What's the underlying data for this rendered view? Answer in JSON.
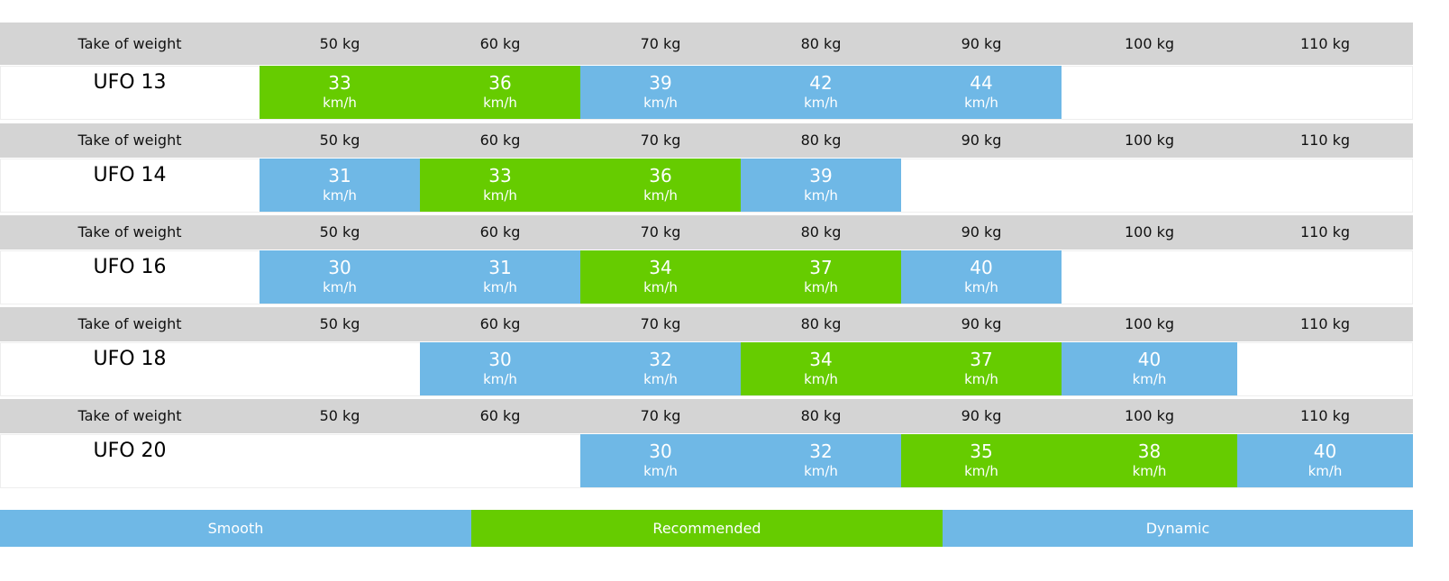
{
  "blocks": [
    {
      "header": [
        "Take of weight",
        "50 kg",
        "60 kg",
        "70 kg",
        "80 kg",
        "90 kg",
        "100 kg",
        "110 kg"
      ],
      "model": "UFO 13",
      "cells": [
        {
          "speed": 33,
          "unit": "km/h",
          "color": "#66cc00"
        },
        {
          "speed": 36,
          "unit": "km/h",
          "color": "#66cc00"
        },
        {
          "speed": 39,
          "unit": "km/h",
          "color": "#6fb8e6"
        },
        {
          "speed": 42,
          "unit": "km/h",
          "color": "#6fb8e6"
        },
        {
          "speed": 44,
          "unit": "km/h",
          "color": "#6fb8e6"
        },
        null,
        null
      ]
    },
    {
      "header": [
        "Take of weight",
        "50 kg",
        "60 kg",
        "70 kg",
        "80 kg",
        "90 kg",
        "100 kg",
        "110 kg"
      ],
      "model": "UFO 14",
      "cells": [
        {
          "speed": 31,
          "unit": "km/h",
          "color": "#6fb8e6"
        },
        {
          "speed": 33,
          "unit": "km/h",
          "color": "#66cc00"
        },
        {
          "speed": 36,
          "unit": "km/h",
          "color": "#66cc00"
        },
        {
          "speed": 39,
          "unit": "km/h",
          "color": "#6fb8e6"
        },
        null,
        null,
        null
      ]
    },
    {
      "header": [
        "Take of weight",
        "50 kg",
        "60 kg",
        "70 kg",
        "80 kg",
        "90 kg",
        "100 kg",
        "110 kg"
      ],
      "model": "UFO 16",
      "cells": [
        {
          "speed": 30,
          "unit": "km/h",
          "color": "#6fb8e6"
        },
        {
          "speed": 31,
          "unit": "km/h",
          "color": "#6fb8e6"
        },
        {
          "speed": 34,
          "unit": "km/h",
          "color": "#66cc00"
        },
        {
          "speed": 37,
          "unit": "km/h",
          "color": "#66cc00"
        },
        {
          "speed": 40,
          "unit": "km/h",
          "color": "#6fb8e6"
        },
        null,
        null
      ]
    },
    {
      "header": [
        "Take of weight",
        "50 kg",
        "60 kg",
        "70 kg",
        "80 kg",
        "90 kg",
        "100 kg",
        "110 kg"
      ],
      "model": "UFO 18",
      "cells": [
        null,
        {
          "speed": 30,
          "unit": "km/h",
          "color": "#6fb8e6"
        },
        {
          "speed": 32,
          "unit": "km/h",
          "color": "#6fb8e6"
        },
        {
          "speed": 34,
          "unit": "km/h",
          "color": "#66cc00"
        },
        {
          "speed": 37,
          "unit": "km/h",
          "color": "#66cc00"
        },
        {
          "speed": 40,
          "unit": "km/h",
          "color": "#6fb8e6"
        },
        null
      ]
    },
    {
      "header": [
        "Take of weight",
        "50 kg",
        "60 kg",
        "70 kg",
        "80 kg",
        "90 kg",
        "100 kg",
        "110 kg"
      ],
      "model": "UFO 20",
      "cells": [
        null,
        null,
        {
          "speed": 30,
          "unit": "km/h",
          "color": "#6fb8e6"
        },
        {
          "speed": 32,
          "unit": "km/h",
          "color": "#6fb8e6"
        },
        {
          "speed": 35,
          "unit": "km/h",
          "color": "#66cc00"
        },
        {
          "speed": 38,
          "unit": "km/h",
          "color": "#66cc00"
        },
        {
          "speed": 40,
          "unit": "km/h",
          "color": "#6fb8e6"
        }
      ]
    }
  ],
  "legend": [
    {
      "label": "Smooth",
      "color": "#6fb8e6"
    },
    {
      "label": "Recommended",
      "color": "#66cc00"
    },
    {
      "label": "Dynamic",
      "color": "#6fb8e6"
    }
  ]
}
